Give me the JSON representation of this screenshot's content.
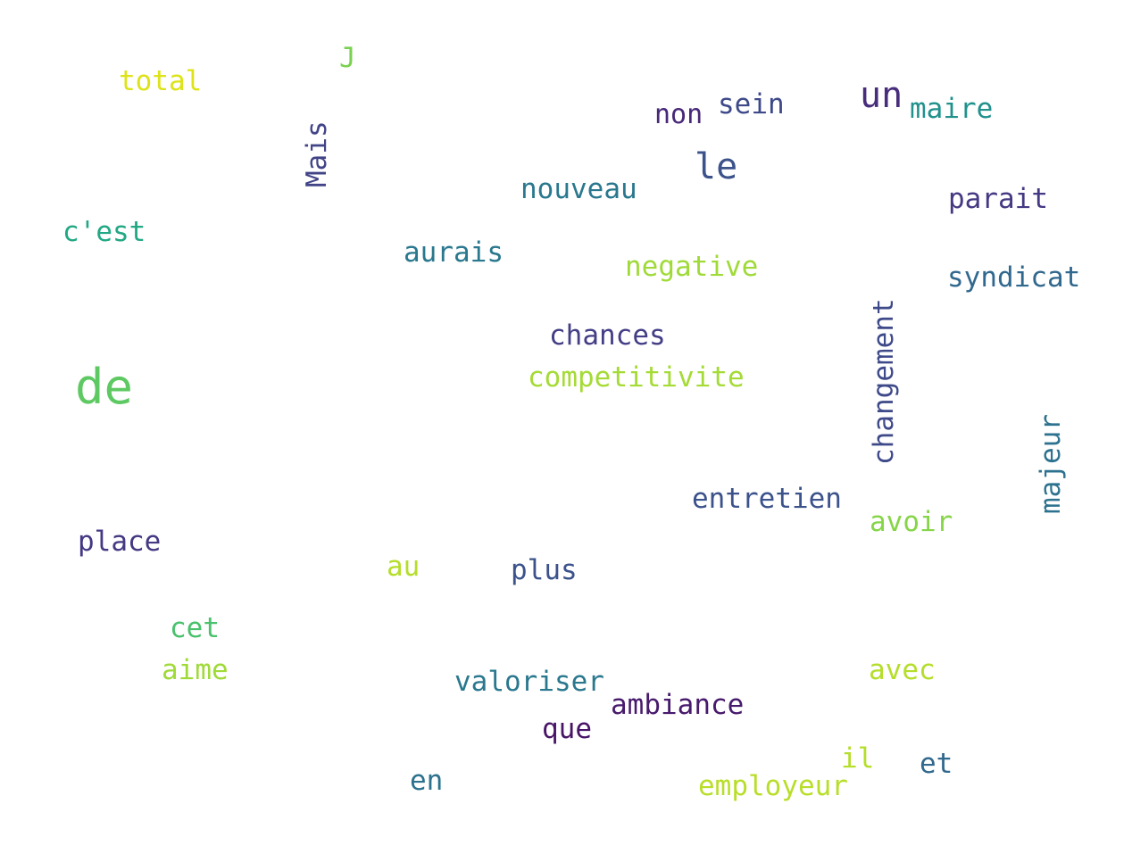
{
  "words": [
    {
      "text": "de",
      "color": "#5ec962"
    },
    {
      "text": "un",
      "color": "#472d7b"
    },
    {
      "text": "le",
      "color": "#3b528b"
    },
    {
      "text": "total",
      "color": "#dde318"
    },
    {
      "text": "J",
      "color": "#7ad151"
    },
    {
      "text": "Mais",
      "color": "#414487"
    },
    {
      "text": "non",
      "color": "#482878"
    },
    {
      "text": "sein",
      "color": "#3e4989"
    },
    {
      "text": "maire",
      "color": "#21918c"
    },
    {
      "text": "nouveau",
      "color": "#2a788e"
    },
    {
      "text": "parait",
      "color": "#443983"
    },
    {
      "text": "c'est",
      "color": "#22a884"
    },
    {
      "text": "aurais",
      "color": "#2a788e"
    },
    {
      "text": "negative",
      "color": "#a0da39"
    },
    {
      "text": "syndicat",
      "color": "#31688e"
    },
    {
      "text": "changement",
      "color": "#3e4989"
    },
    {
      "text": "chances",
      "color": "#433e85"
    },
    {
      "text": "competitivite",
      "color": "#a5db36"
    },
    {
      "text": "majeur",
      "color": "#2c728e"
    },
    {
      "text": "entretien",
      "color": "#3b528b"
    },
    {
      "text": "avoir",
      "color": "#86d549"
    },
    {
      "text": "place",
      "color": "#443983"
    },
    {
      "text": "au",
      "color": "#b5de2b"
    },
    {
      "text": "plus",
      "color": "#3b528b"
    },
    {
      "text": "cet",
      "color": "#4ac16d"
    },
    {
      "text": "aime",
      "color": "#a0da39"
    },
    {
      "text": "avec",
      "color": "#b5de2b"
    },
    {
      "text": "valoriser",
      "color": "#2a788e"
    },
    {
      "text": "ambiance",
      "color": "#481a6c"
    },
    {
      "text": "que",
      "color": "#481467"
    },
    {
      "text": "il",
      "color": "#b5de2b"
    },
    {
      "text": "et",
      "color": "#31688e"
    },
    {
      "text": "en",
      "color": "#2c728e"
    },
    {
      "text": "employeur",
      "color": "#b8de29"
    }
  ]
}
